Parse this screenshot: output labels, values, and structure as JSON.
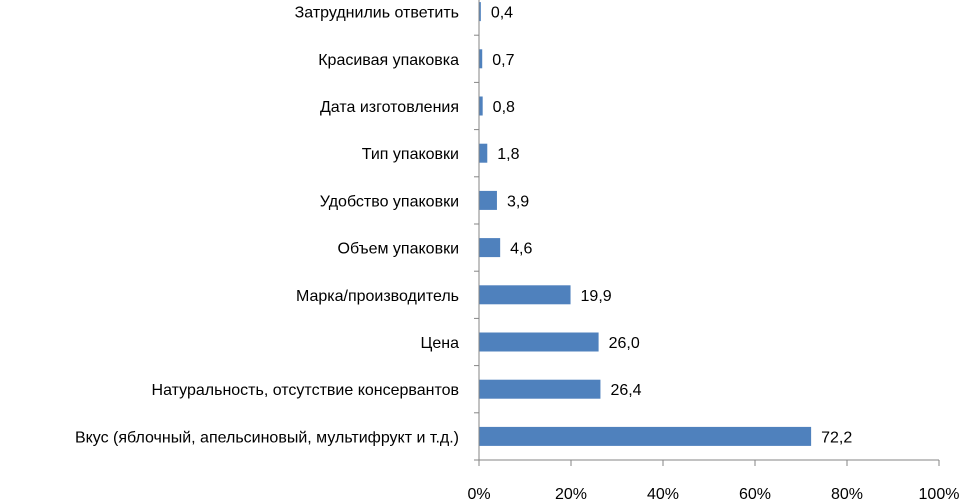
{
  "chart_data": {
    "type": "bar",
    "orientation": "horizontal",
    "categories": [
      "Вкус (яблочный, апельсиновый, мультифрукт и т.д.)",
      "Натуральность, отсутствие консервантов",
      "Цена",
      "Марка/производитель",
      "Объем упаковки",
      "Удобство упаковки",
      "Тип упаковки",
      "Дата изготовления",
      "Красивая упаковка",
      "Затруднилиь ответить"
    ],
    "values": [
      72.2,
      26.4,
      26.0,
      19.9,
      4.6,
      3.9,
      1.8,
      0.8,
      0.7,
      0.4
    ],
    "data_labels": [
      "72,2",
      "26,4",
      "26,0",
      "19,9",
      "4,6",
      "3,9",
      "1,8",
      "0,8",
      "0,7",
      "0,4"
    ],
    "xlim": [
      0,
      100
    ],
    "x_ticks": [
      0,
      20,
      40,
      60,
      80,
      100
    ],
    "x_tick_labels": [
      "0%",
      "20%",
      "40%",
      "60%",
      "80%",
      "100%"
    ],
    "title": "",
    "xlabel": "",
    "ylabel": "",
    "grid": false,
    "legend": "none",
    "bar_color": "#4F81BD"
  }
}
